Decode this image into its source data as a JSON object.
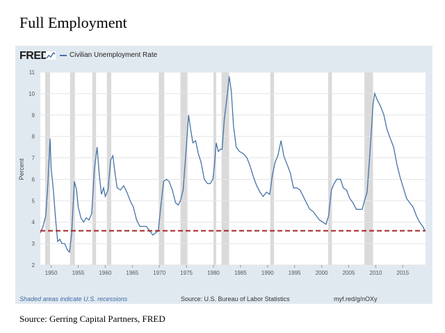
{
  "title": "Full Employment",
  "source": "Source: Gerring Capital Partners, FRED",
  "fred": {
    "brand": "FRED",
    "series_label": "Civilian Unemployment Rate",
    "footer_left": "Shaded areas indicate U.S. recessions",
    "footer_mid": "Source: U.S. Bureau of Labor Statistics",
    "footer_right": "myf.red/g/nOXy"
  },
  "colors": {
    "line": "#4572a7",
    "reference_line": "#a82323",
    "recession": "#d4d4d4",
    "frame": "#e1e9f0"
  },
  "chart_data": {
    "type": "line",
    "ylabel": "Percent",
    "ylim": [
      2,
      11
    ],
    "xlim": [
      1948,
      2019.2
    ],
    "xticks": [
      1950,
      1955,
      1960,
      1965,
      1970,
      1975,
      1980,
      1985,
      1990,
      1995,
      2000,
      2005,
      2010,
      2015
    ],
    "yticks": [
      2,
      3,
      4,
      5,
      6,
      7,
      8,
      9,
      10,
      11
    ],
    "grid": true,
    "reference_line": {
      "value": 3.6,
      "style": "dashed"
    },
    "recessions": [
      [
        1948.9,
        1949.8
      ],
      [
        1953.5,
        1954.4
      ],
      [
        1957.6,
        1958.3
      ],
      [
        1960.3,
        1961.1
      ],
      [
        1969.9,
        1970.9
      ],
      [
        1973.9,
        1975.2
      ],
      [
        1980.0,
        1980.5
      ],
      [
        1981.5,
        1982.9
      ],
      [
        1990.5,
        1991.2
      ],
      [
        2001.2,
        2001.9
      ],
      [
        2007.9,
        2009.5
      ]
    ],
    "series": [
      {
        "name": "Civilian Unemployment Rate",
        "x": [
          1948.0,
          1948.5,
          1949.0,
          1949.4,
          1949.8,
          1950.0,
          1950.4,
          1950.8,
          1951.2,
          1951.6,
          1952.0,
          1952.5,
          1953.0,
          1953.4,
          1953.8,
          1954.3,
          1954.7,
          1955.0,
          1955.5,
          1956.0,
          1956.5,
          1957.0,
          1957.5,
          1958.0,
          1958.5,
          1958.9,
          1959.3,
          1959.7,
          1960.0,
          1960.5,
          1961.0,
          1961.4,
          1961.8,
          1962.2,
          1962.8,
          1963.4,
          1964.0,
          1964.6,
          1965.2,
          1965.8,
          1966.4,
          1967.0,
          1967.6,
          1968.2,
          1968.8,
          1969.3,
          1969.8,
          1970.3,
          1970.8,
          1971.3,
          1971.8,
          1972.4,
          1973.0,
          1973.5,
          1973.9,
          1974.4,
          1974.9,
          1975.4,
          1975.8,
          1976.2,
          1976.7,
          1977.2,
          1977.7,
          1978.3,
          1978.9,
          1979.4,
          1979.9,
          1980.2,
          1980.5,
          1980.9,
          1981.3,
          1981.6,
          1982.0,
          1982.5,
          1982.9,
          1983.3,
          1983.7,
          1984.2,
          1984.8,
          1985.5,
          1986.2,
          1986.8,
          1987.4,
          1988.0,
          1988.6,
          1989.2,
          1989.8,
          1990.4,
          1990.9,
          1991.4,
          1991.9,
          1992.5,
          1993.0,
          1993.6,
          1994.2,
          1994.8,
          1995.4,
          1996.0,
          1996.6,
          1997.2,
          1997.8,
          1998.4,
          1999.0,
          1999.6,
          2000.2,
          2000.8,
          2001.3,
          2001.8,
          2002.3,
          2002.8,
          2003.5,
          2004.0,
          2004.6,
          2005.2,
          2005.8,
          2006.4,
          2007.0,
          2007.5,
          2007.9,
          2008.4,
          2008.8,
          2009.2,
          2009.5,
          2009.8,
          2010.3,
          2010.9,
          2011.5,
          2012.1,
          2012.7,
          2013.3,
          2013.9,
          2014.5,
          2015.1,
          2015.7,
          2016.3,
          2016.9,
          2017.5,
          2018.1,
          2018.7,
          2019.1
        ],
        "values": [
          3.5,
          3.8,
          4.3,
          5.8,
          7.9,
          6.5,
          5.5,
          4.2,
          3.1,
          3.2,
          3.0,
          3.0,
          2.7,
          2.6,
          3.5,
          5.9,
          5.5,
          4.7,
          4.2,
          4.0,
          4.2,
          4.1,
          4.4,
          6.5,
          7.5,
          6.2,
          5.3,
          5.6,
          5.2,
          5.5,
          6.9,
          7.1,
          6.3,
          5.6,
          5.5,
          5.7,
          5.4,
          5.0,
          4.7,
          4.1,
          3.8,
          3.8,
          3.8,
          3.6,
          3.4,
          3.5,
          3.6,
          4.8,
          5.9,
          6.0,
          5.9,
          5.5,
          4.9,
          4.8,
          5.0,
          5.5,
          7.2,
          9.0,
          8.3,
          7.7,
          7.8,
          7.2,
          6.8,
          6.0,
          5.8,
          5.8,
          6.0,
          6.7,
          7.7,
          7.3,
          7.4,
          7.4,
          8.8,
          9.8,
          10.8,
          10.1,
          8.5,
          7.5,
          7.3,
          7.2,
          7.0,
          6.6,
          6.1,
          5.7,
          5.4,
          5.2,
          5.4,
          5.3,
          6.2,
          6.8,
          7.1,
          7.8,
          7.1,
          6.7,
          6.3,
          5.6,
          5.6,
          5.5,
          5.2,
          4.9,
          4.6,
          4.5,
          4.3,
          4.1,
          4.0,
          3.9,
          4.3,
          5.5,
          5.8,
          6.0,
          6.0,
          5.6,
          5.5,
          5.1,
          4.9,
          4.6,
          4.6,
          4.6,
          5.0,
          5.4,
          6.8,
          8.3,
          9.5,
          10.0,
          9.7,
          9.4,
          9.0,
          8.3,
          7.9,
          7.5,
          6.7,
          6.1,
          5.6,
          5.1,
          4.9,
          4.7,
          4.3,
          4.0,
          3.8,
          3.6
        ]
      }
    ]
  }
}
